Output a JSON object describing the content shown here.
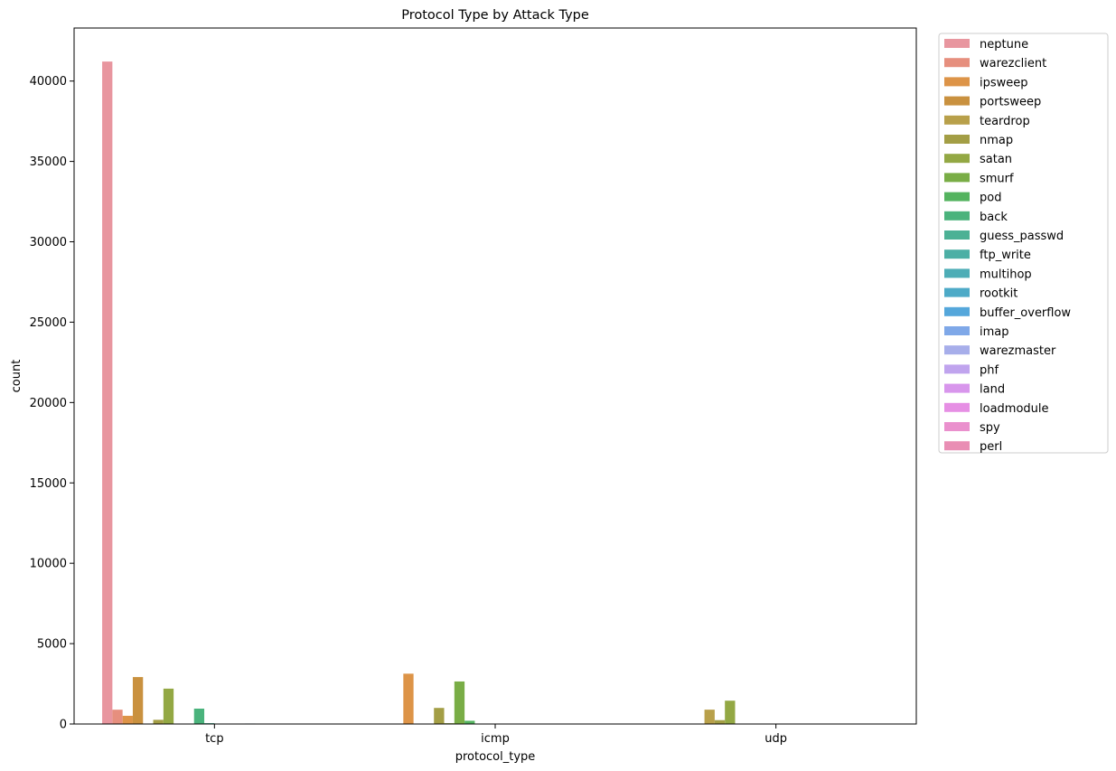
{
  "chart_data": {
    "type": "bar",
    "title": "Protocol Type by Attack Type",
    "xlabel": "protocol_type",
    "ylabel": "count",
    "categories": [
      "tcp",
      "icmp",
      "udp"
    ],
    "ylim": [
      0,
      43300
    ],
    "yticks": [
      0,
      5000,
      10000,
      15000,
      20000,
      25000,
      30000,
      35000,
      40000
    ],
    "grid": false,
    "legend_position": "outside-right",
    "series": [
      {
        "name": "neptune",
        "color": "#e8969f",
        "values": [
          41214,
          0,
          0
        ]
      },
      {
        "name": "warezclient",
        "color": "#e68f7e",
        "values": [
          890,
          0,
          0
        ]
      },
      {
        "name": "ipsweep",
        "color": "#dd9448",
        "values": [
          510,
          3130,
          0
        ]
      },
      {
        "name": "portsweep",
        "color": "#c9913f",
        "values": [
          2920,
          20,
          0
        ]
      },
      {
        "name": "teardrop",
        "color": "#b8a04a",
        "values": [
          0,
          0,
          892
        ]
      },
      {
        "name": "nmap",
        "color": "#a39e45",
        "values": [
          260,
          1000,
          240
        ]
      },
      {
        "name": "satan",
        "color": "#93a844",
        "values": [
          2200,
          50,
          1450
        ]
      },
      {
        "name": "smurf",
        "color": "#79ad46",
        "values": [
          0,
          2646,
          0
        ]
      },
      {
        "name": "pod",
        "color": "#54b35f",
        "values": [
          0,
          201,
          0
        ]
      },
      {
        "name": "back",
        "color": "#4ab37c",
        "values": [
          956,
          0,
          0
        ]
      },
      {
        "name": "guess_passwd",
        "color": "#4cb195",
        "values": [
          53,
          0,
          0
        ]
      },
      {
        "name": "ftp_write",
        "color": "#4cafa5",
        "values": [
          8,
          0,
          0
        ]
      },
      {
        "name": "multihop",
        "color": "#4dadb6",
        "values": [
          7,
          0,
          0
        ]
      },
      {
        "name": "rootkit",
        "color": "#4daac7",
        "values": [
          7,
          0,
          3
        ]
      },
      {
        "name": "buffer_overflow",
        "color": "#55a7db",
        "values": [
          30,
          0,
          0
        ]
      },
      {
        "name": "imap",
        "color": "#7fa8e8",
        "values": [
          11,
          0,
          0
        ]
      },
      {
        "name": "warezmaster",
        "color": "#a7aeea",
        "values": [
          20,
          0,
          0
        ]
      },
      {
        "name": "phf",
        "color": "#c0a4ee",
        "values": [
          4,
          0,
          0
        ]
      },
      {
        "name": "land",
        "color": "#d896ec",
        "values": [
          18,
          0,
          0
        ]
      },
      {
        "name": "loadmodule",
        "color": "#e68fe4",
        "values": [
          9,
          0,
          0
        ]
      },
      {
        "name": "spy",
        "color": "#ea90cd",
        "values": [
          2,
          0,
          0
        ]
      },
      {
        "name": "perl",
        "color": "#e98eb4",
        "values": [
          3,
          0,
          0
        ]
      }
    ]
  }
}
